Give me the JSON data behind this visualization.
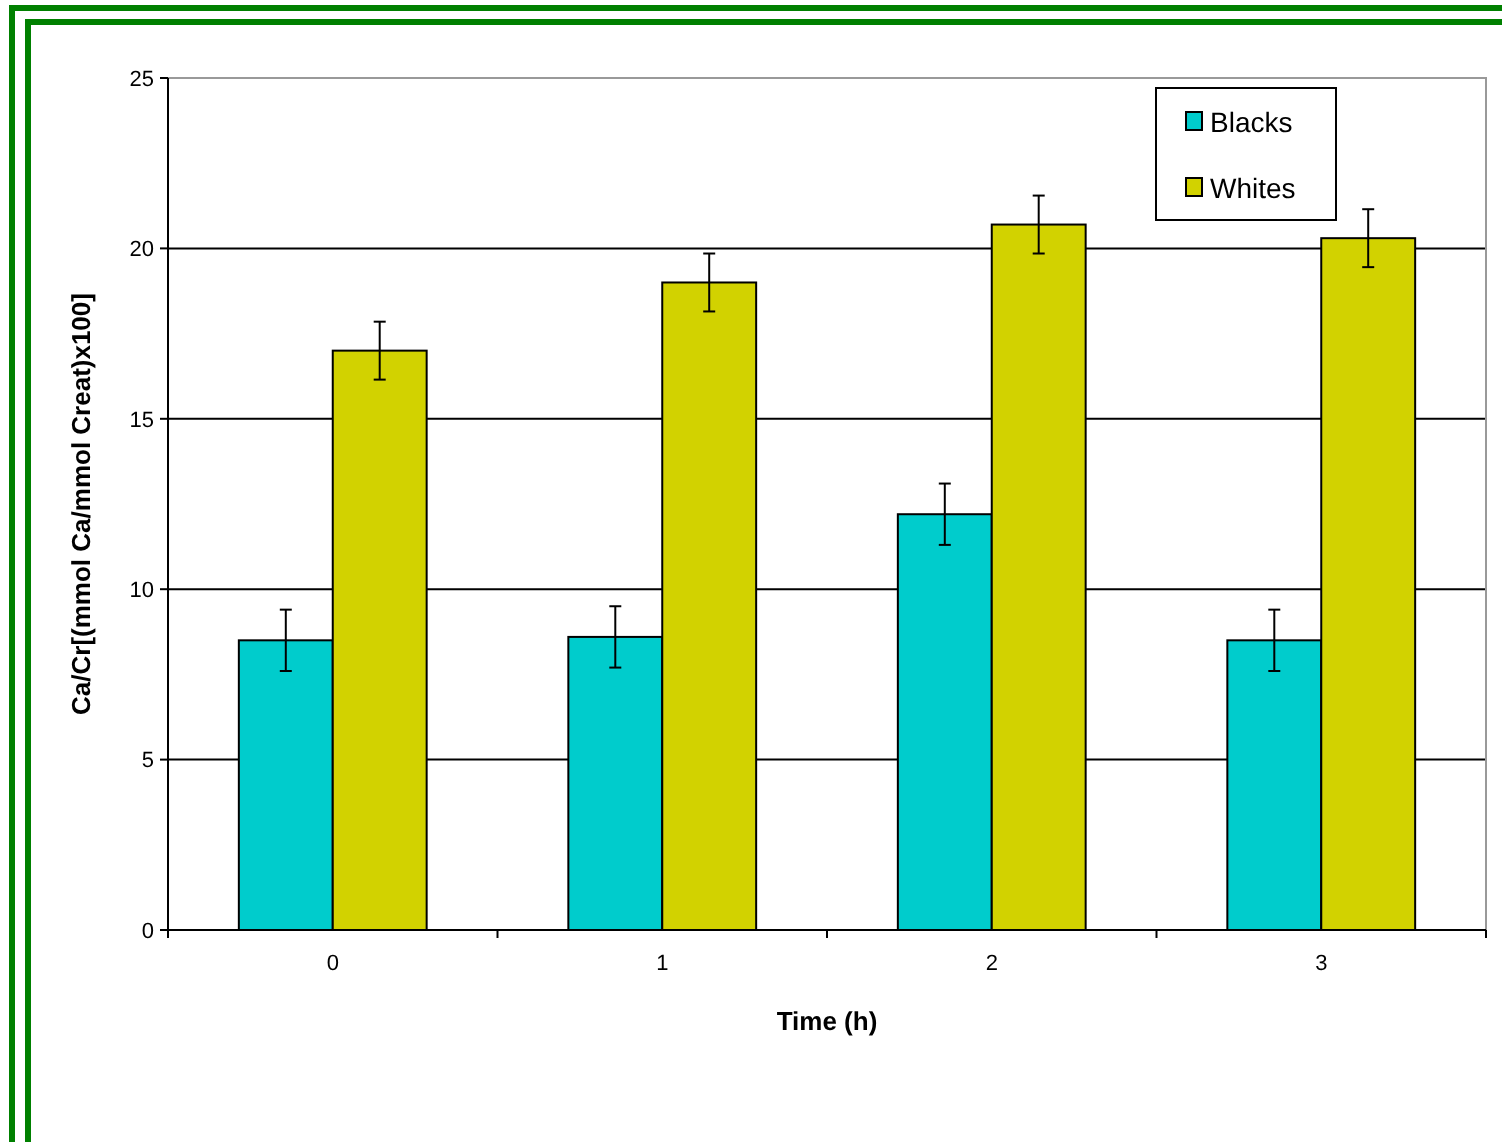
{
  "chart_data": {
    "type": "bar",
    "xlabel": "Time (h)",
    "ylabel": "Ca/Cr[(mmol Ca/mmol Creat)x100]",
    "categories": [
      "0",
      "1",
      "2",
      "3"
    ],
    "series": [
      {
        "name": "Blacks",
        "color": "#00cccc",
        "values": [
          8.5,
          8.6,
          12.2,
          8.5
        ],
        "errors": [
          0.9,
          0.9,
          0.9,
          0.9
        ]
      },
      {
        "name": "Whites",
        "color": "#d2d200",
        "values": [
          17.0,
          19.0,
          20.7,
          20.3
        ],
        "errors": [
          0.85,
          0.85,
          0.85,
          0.85
        ]
      }
    ],
    "ylim": [
      0,
      25
    ],
    "yticks": [
      0,
      5,
      10,
      15,
      20,
      25
    ],
    "grid": "y",
    "legend": "top right"
  }
}
